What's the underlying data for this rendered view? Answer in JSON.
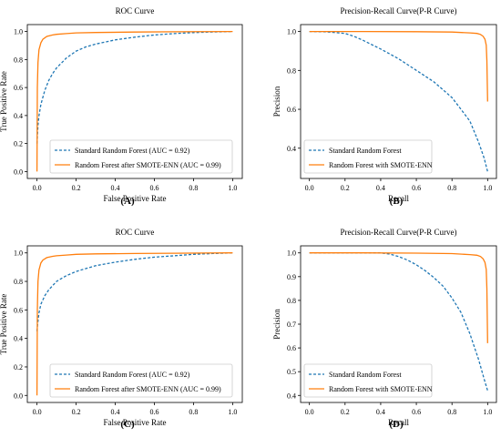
{
  "colors": {
    "standard": "#1f77b4",
    "enhanced": "#ff7f0e",
    "axis": "#000000"
  },
  "chart_data": [
    {
      "panel": "(A)",
      "type": "line",
      "title": "ROC Curve",
      "xlabel": "False Positive Rate",
      "ylabel": "True Positive Rate",
      "xlim": [
        0,
        1
      ],
      "ylim": [
        0,
        1
      ],
      "xticks": [
        "0.0",
        "0.2",
        "0.4",
        "0.6",
        "0.8",
        "1.0"
      ],
      "yticks": [
        "0.0",
        "0.2",
        "0.4",
        "0.6",
        "0.8",
        "1.0"
      ],
      "grid": false,
      "legend_position": "bottom-right",
      "series": [
        {
          "name": "Standard Random Forest  (AUC = 0.92)",
          "style": "dashed",
          "color": "#1f77b4",
          "x": [
            0,
            0.005,
            0.01,
            0.02,
            0.04,
            0.06,
            0.08,
            0.1,
            0.15,
            0.2,
            0.25,
            0.3,
            0.4,
            0.5,
            0.6,
            0.7,
            0.8,
            0.9,
            1.0
          ],
          "y": [
            0.2,
            0.33,
            0.4,
            0.48,
            0.58,
            0.65,
            0.7,
            0.74,
            0.81,
            0.86,
            0.89,
            0.91,
            0.94,
            0.96,
            0.975,
            0.985,
            0.992,
            0.997,
            1.0
          ]
        },
        {
          "name": "Random Forest after SMOTE-ENN (AUC = 0.99)",
          "style": "solid",
          "color": "#ff7f0e",
          "x": [
            0,
            0.002,
            0.005,
            0.01,
            0.02,
            0.03,
            0.05,
            0.08,
            0.1,
            0.15,
            0.2,
            0.3,
            0.5,
            0.7,
            1.0
          ],
          "y": [
            0,
            0.6,
            0.78,
            0.87,
            0.92,
            0.945,
            0.965,
            0.975,
            0.98,
            0.985,
            0.99,
            0.993,
            0.996,
            0.998,
            1.0
          ]
        }
      ]
    },
    {
      "panel": "(B)",
      "type": "line",
      "title": "Precision-Recall Curve(P-R Curve)",
      "xlabel": "Recall",
      "ylabel": "Precision",
      "xlim": [
        0,
        1
      ],
      "ylim": [
        0.28,
        1.0
      ],
      "xticks": [
        "0.0",
        "0.2",
        "0.4",
        "0.6",
        "0.8",
        "1.0"
      ],
      "yticks": [
        "0.4",
        "0.6",
        "0.8",
        "1.0"
      ],
      "grid": false,
      "legend_position": "bottom-left",
      "series": [
        {
          "name": "Standard Random Forest",
          "style": "dashed",
          "color": "#1f77b4",
          "x": [
            0,
            0.1,
            0.2,
            0.25,
            0.3,
            0.4,
            0.5,
            0.6,
            0.7,
            0.8,
            0.85,
            0.9,
            0.95,
            0.98,
            1.0
          ],
          "y": [
            1.0,
            0.998,
            0.99,
            0.975,
            0.955,
            0.91,
            0.86,
            0.8,
            0.74,
            0.66,
            0.6,
            0.54,
            0.43,
            0.35,
            0.28
          ]
        },
        {
          "name": "Random Forest with SMOTE-ENN",
          "style": "solid",
          "color": "#ff7f0e",
          "x": [
            0,
            0.3,
            0.6,
            0.8,
            0.9,
            0.94,
            0.96,
            0.975,
            0.985,
            0.992,
            0.996,
            1.0
          ],
          "y": [
            1.0,
            1.0,
            0.999,
            0.997,
            0.993,
            0.99,
            0.985,
            0.975,
            0.96,
            0.93,
            0.85,
            0.64
          ]
        }
      ]
    },
    {
      "panel": "(C)",
      "type": "line",
      "title": "ROC Curve",
      "xlabel": "False Positive Rate",
      "ylabel": "True Positive Rate",
      "xlim": [
        0,
        1
      ],
      "ylim": [
        0,
        1
      ],
      "xticks": [
        "0.0",
        "0.2",
        "0.4",
        "0.6",
        "0.8",
        "1.0"
      ],
      "yticks": [
        "0.0",
        "0.2",
        "0.4",
        "0.6",
        "0.8",
        "1.0"
      ],
      "grid": false,
      "legend_position": "bottom-right",
      "series": [
        {
          "name": "Standard Random Forest  (AUC = 0.92)",
          "style": "dashed",
          "color": "#1f77b4",
          "x": [
            0,
            0.003,
            0.01,
            0.02,
            0.04,
            0.06,
            0.08,
            0.1,
            0.15,
            0.2,
            0.3,
            0.4,
            0.5,
            0.6,
            0.7,
            0.8,
            0.9,
            1.0
          ],
          "y": [
            0.45,
            0.5,
            0.58,
            0.64,
            0.7,
            0.74,
            0.77,
            0.8,
            0.84,
            0.87,
            0.91,
            0.935,
            0.955,
            0.97,
            0.98,
            0.99,
            0.996,
            1.0
          ]
        },
        {
          "name": "Random Forest after SMOTE-ENN (AUC = 0.99)",
          "style": "solid",
          "color": "#ff7f0e",
          "x": [
            0,
            0.002,
            0.005,
            0.01,
            0.02,
            0.03,
            0.05,
            0.08,
            0.1,
            0.15,
            0.2,
            0.3,
            0.5,
            0.7,
            1.0
          ],
          "y": [
            0,
            0.6,
            0.8,
            0.88,
            0.93,
            0.95,
            0.967,
            0.976,
            0.98,
            0.985,
            0.99,
            0.993,
            0.996,
            0.998,
            1.0
          ]
        }
      ]
    },
    {
      "panel": "(D)",
      "type": "line",
      "title": "Precision-Recall Curve(P-R Curve)",
      "xlabel": "Recall",
      "ylabel": "Precision",
      "xlim": [
        0,
        1
      ],
      "ylim": [
        0.4,
        1.0
      ],
      "xticks": [
        "0.0",
        "0.2",
        "0.4",
        "0.6",
        "0.8",
        "1.0"
      ],
      "yticks": [
        "0.4",
        "0.5",
        "0.6",
        "0.7",
        "0.8",
        "0.9",
        "1.0"
      ],
      "grid": false,
      "legend_position": "bottom-left",
      "series": [
        {
          "name": "Standard Random Forest",
          "style": "dashed",
          "color": "#1f77b4",
          "x": [
            0,
            0.2,
            0.4,
            0.45,
            0.5,
            0.55,
            0.6,
            0.65,
            0.7,
            0.75,
            0.8,
            0.85,
            0.9,
            0.95,
            0.98,
            1.0
          ],
          "y": [
            1.0,
            1.0,
            1.0,
            0.995,
            0.985,
            0.97,
            0.95,
            0.925,
            0.895,
            0.86,
            0.81,
            0.75,
            0.66,
            0.55,
            0.47,
            0.42
          ]
        },
        {
          "name": "Random Forest with SMOTE-ENN",
          "style": "solid",
          "color": "#ff7f0e",
          "x": [
            0,
            0.3,
            0.6,
            0.8,
            0.9,
            0.94,
            0.96,
            0.975,
            0.985,
            0.992,
            0.996,
            1.0
          ],
          "y": [
            1.0,
            1.0,
            0.999,
            0.997,
            0.993,
            0.99,
            0.985,
            0.975,
            0.96,
            0.93,
            0.85,
            0.62
          ]
        }
      ]
    }
  ]
}
